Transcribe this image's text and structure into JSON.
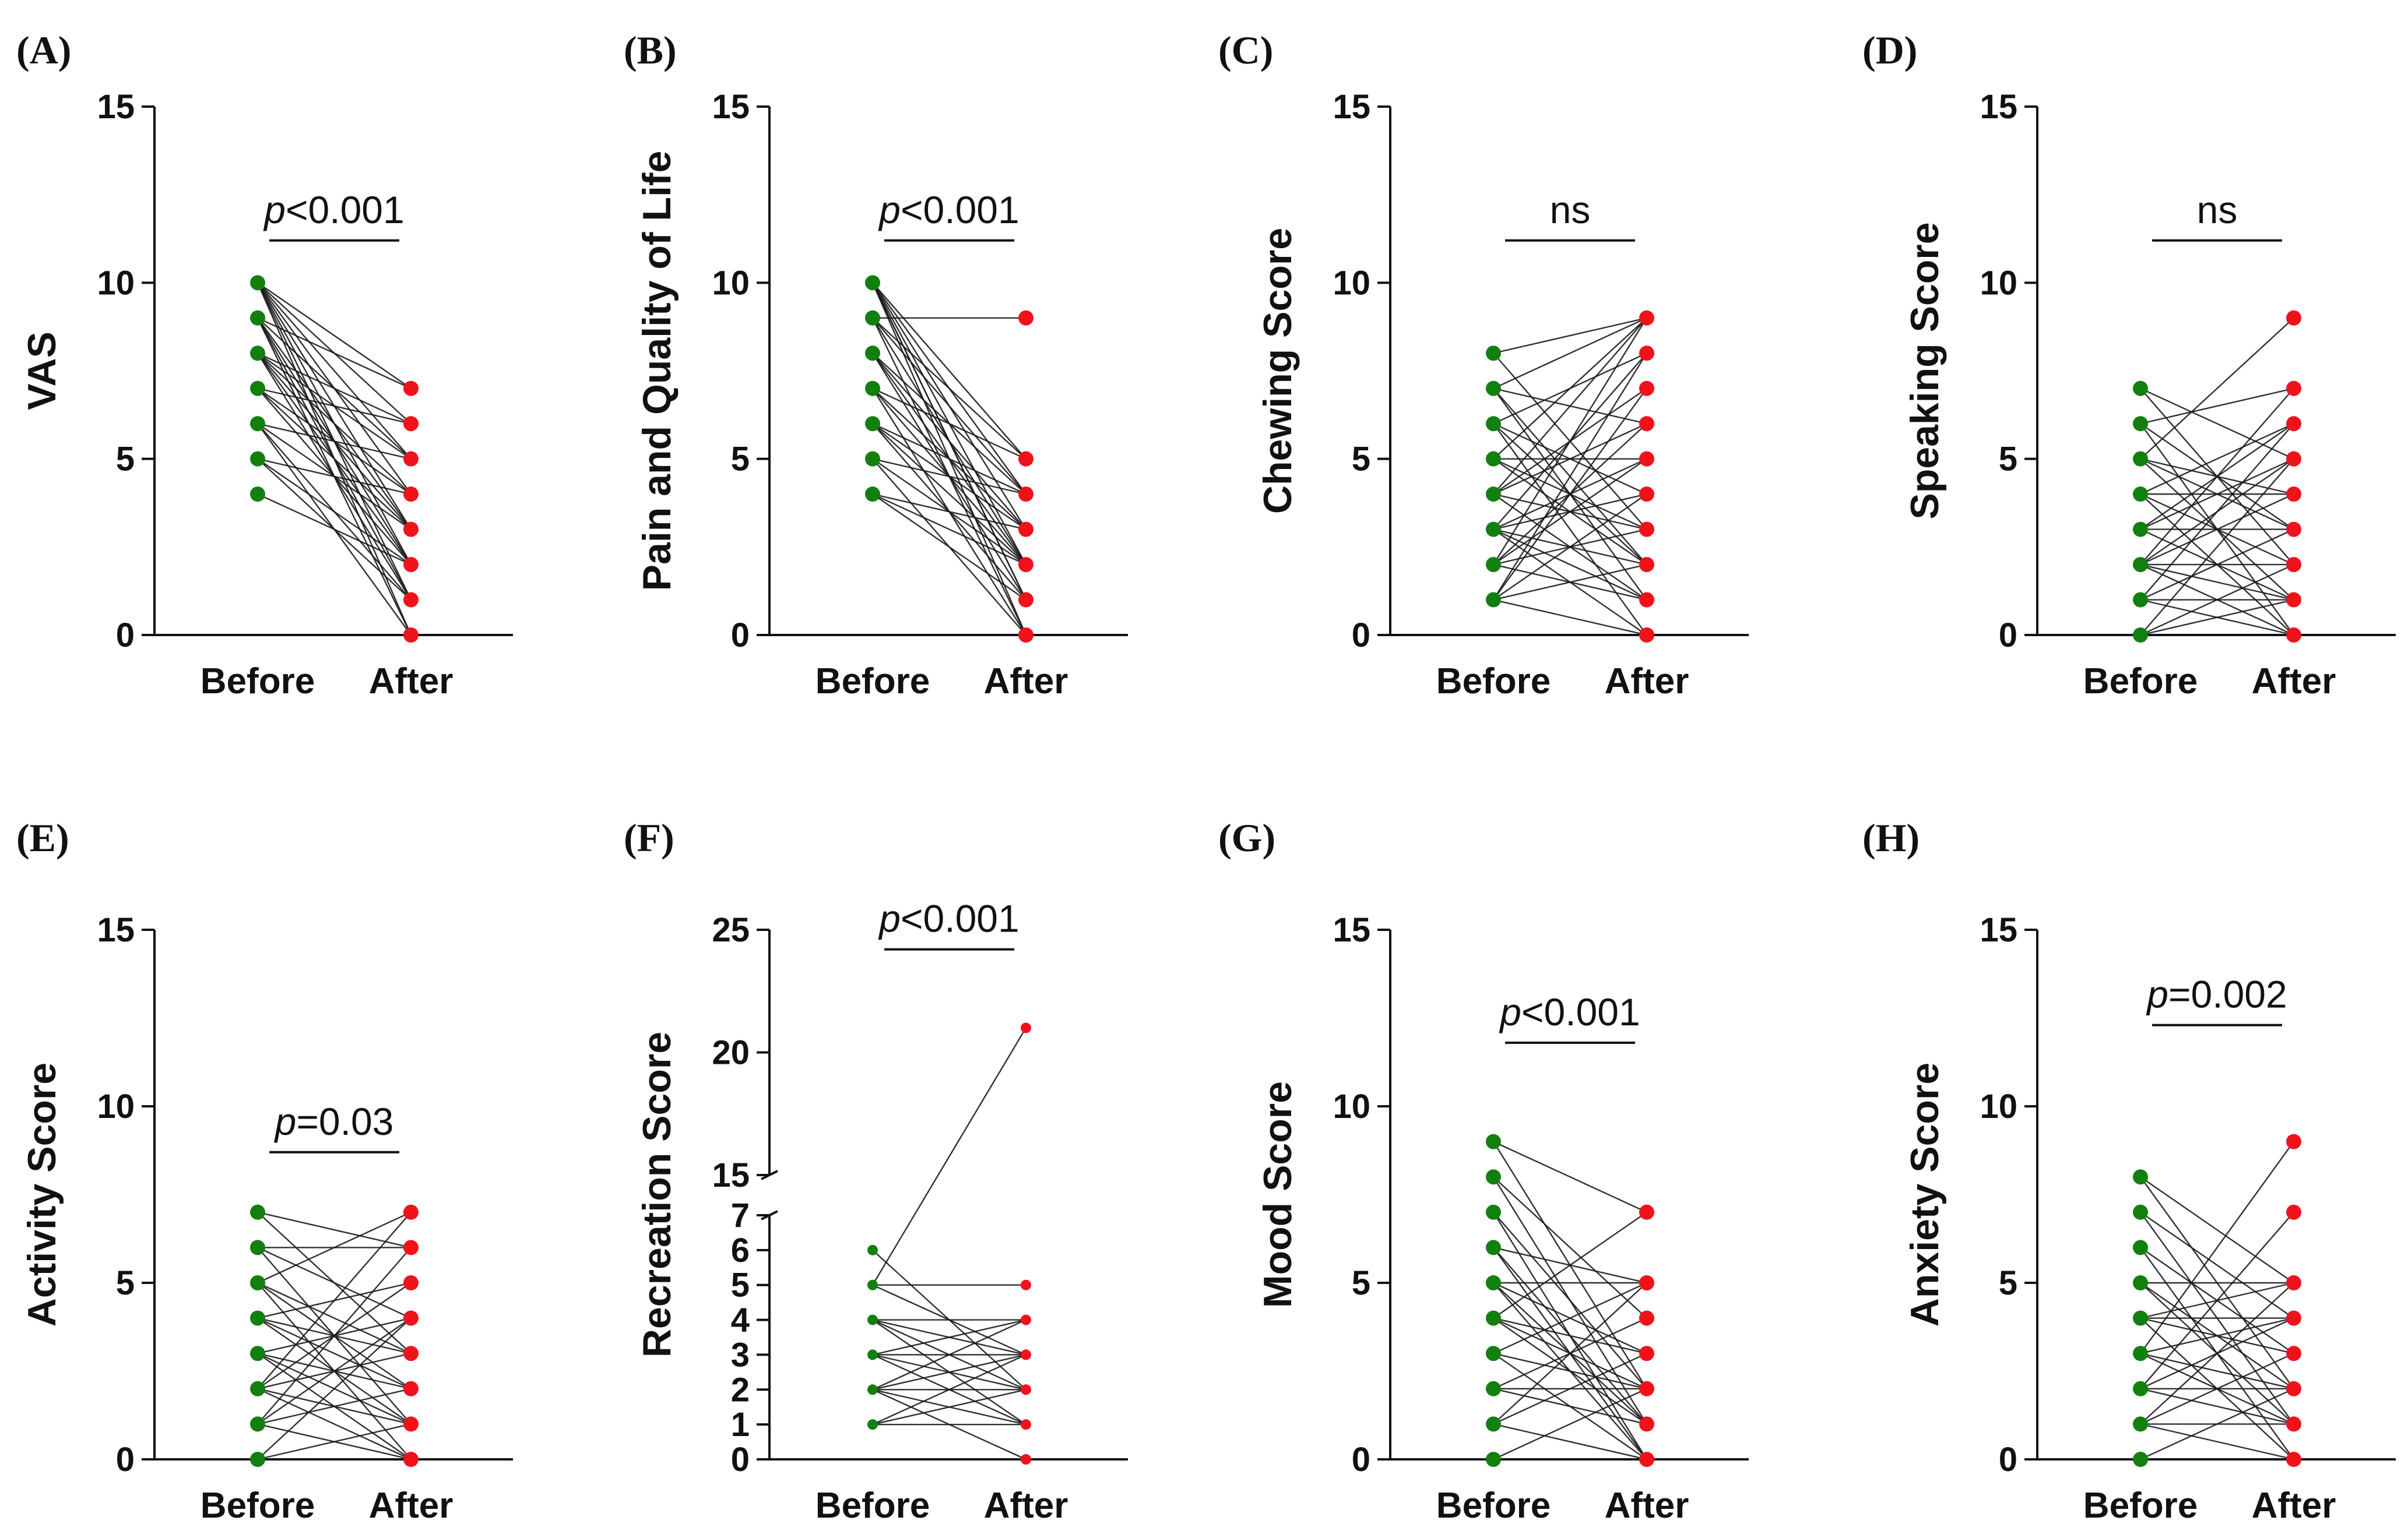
{
  "figure": {
    "colors": {
      "before": "#12800f",
      "after": "#f0121b",
      "axis": "#111111",
      "line": "#1a1a1a"
    }
  },
  "chart_data": [
    {
      "panel": "(A)",
      "type": "line",
      "title": "",
      "xlabel": "",
      "ylabel": "VAS",
      "categories": [
        "Before",
        "After"
      ],
      "ylim": [
        0,
        15
      ],
      "yticks": [
        0,
        5,
        10,
        15
      ],
      "significance": {
        "prefix": "p",
        "text": "<0.001"
      },
      "before_values": [
        4,
        5,
        6,
        7,
        8,
        9,
        10
      ],
      "after_values": [
        0,
        1,
        2,
        3,
        4,
        5,
        6,
        7
      ],
      "pairs": [
        [
          10,
          7
        ],
        [
          10,
          6
        ],
        [
          10,
          5
        ],
        [
          10,
          4
        ],
        [
          10,
          3
        ],
        [
          10,
          2
        ],
        [
          10,
          1
        ],
        [
          9,
          7
        ],
        [
          9,
          5
        ],
        [
          9,
          3
        ],
        [
          9,
          1
        ],
        [
          9,
          0
        ],
        [
          8,
          6
        ],
        [
          8,
          4
        ],
        [
          8,
          2
        ],
        [
          8,
          5
        ],
        [
          8,
          1
        ],
        [
          7,
          6
        ],
        [
          7,
          3
        ],
        [
          7,
          2
        ],
        [
          7,
          4
        ],
        [
          6,
          5
        ],
        [
          6,
          3
        ],
        [
          6,
          1
        ],
        [
          6,
          0
        ],
        [
          5,
          4
        ],
        [
          5,
          2
        ],
        [
          5,
          1
        ],
        [
          4,
          2
        ],
        [
          10,
          0
        ],
        [
          9,
          2
        ],
        [
          8,
          3
        ]
      ]
    },
    {
      "panel": "(B)",
      "type": "line",
      "title": "",
      "xlabel": "",
      "ylabel": "Pain and Quality of Life",
      "categories": [
        "Before",
        "After"
      ],
      "ylim": [
        0,
        15
      ],
      "yticks": [
        0,
        5,
        10,
        15
      ],
      "significance": {
        "prefix": "p",
        "text": "<0.001"
      },
      "before_values": [
        4,
        5,
        6,
        7,
        8,
        9,
        10
      ],
      "after_values": [
        0,
        1,
        2,
        3,
        4,
        5,
        9
      ],
      "pairs": [
        [
          9,
          9
        ],
        [
          10,
          5
        ],
        [
          10,
          4
        ],
        [
          10,
          3
        ],
        [
          10,
          2
        ],
        [
          10,
          1
        ],
        [
          10,
          0
        ],
        [
          9,
          5
        ],
        [
          9,
          4
        ],
        [
          9,
          2
        ],
        [
          9,
          0
        ],
        [
          8,
          4
        ],
        [
          8,
          3
        ],
        [
          8,
          1
        ],
        [
          8,
          2
        ],
        [
          7,
          5
        ],
        [
          7,
          3
        ],
        [
          7,
          2
        ],
        [
          7,
          0
        ],
        [
          6,
          4
        ],
        [
          6,
          3
        ],
        [
          6,
          1
        ],
        [
          6,
          2
        ],
        [
          5,
          4
        ],
        [
          5,
          2
        ],
        [
          5,
          0
        ],
        [
          4,
          2
        ],
        [
          4,
          1
        ],
        [
          4,
          3
        ],
        [
          10,
          1
        ]
      ]
    },
    {
      "panel": "(C)",
      "type": "line",
      "title": "",
      "xlabel": "",
      "ylabel": "Chewing Score",
      "categories": [
        "Before",
        "After"
      ],
      "ylim": [
        0,
        15
      ],
      "yticks": [
        0,
        5,
        10,
        15
      ],
      "significance": {
        "prefix": "",
        "text": "ns"
      },
      "before_values": [
        1,
        2,
        3,
        4,
        5,
        6,
        7,
        8
      ],
      "after_values": [
        0,
        1,
        2,
        3,
        4,
        5,
        6,
        7,
        8,
        9
      ],
      "pairs": [
        [
          8,
          9
        ],
        [
          8,
          3
        ],
        [
          7,
          9
        ],
        [
          7,
          6
        ],
        [
          7,
          2
        ],
        [
          7,
          1
        ],
        [
          6,
          8
        ],
        [
          6,
          4
        ],
        [
          6,
          0
        ],
        [
          5,
          9
        ],
        [
          5,
          5
        ],
        [
          5,
          2
        ],
        [
          4,
          7
        ],
        [
          4,
          3
        ],
        [
          4,
          1
        ],
        [
          4,
          6
        ],
        [
          3,
          8
        ],
        [
          3,
          5
        ],
        [
          3,
          2
        ],
        [
          3,
          0
        ],
        [
          3,
          4
        ],
        [
          2,
          9
        ],
        [
          2,
          6
        ],
        [
          2,
          3
        ],
        [
          2,
          1
        ],
        [
          1,
          7
        ],
        [
          1,
          4
        ],
        [
          1,
          2
        ],
        [
          1,
          0
        ],
        [
          2,
          5
        ],
        [
          3,
          1
        ],
        [
          4,
          9
        ],
        [
          5,
          3
        ],
        [
          6,
          2
        ],
        [
          1,
          8
        ]
      ]
    },
    {
      "panel": "(D)",
      "type": "line",
      "title": "",
      "xlabel": "",
      "ylabel": "Speaking Score",
      "categories": [
        "Before",
        "After"
      ],
      "ylim": [
        0,
        15
      ],
      "yticks": [
        0,
        5,
        10,
        15
      ],
      "significance": {
        "prefix": "",
        "text": "ns"
      },
      "before_values": [
        0,
        1,
        2,
        3,
        4,
        5,
        6,
        7
      ],
      "after_values": [
        0,
        1,
        2,
        3,
        4,
        5,
        6,
        7,
        9
      ],
      "pairs": [
        [
          7,
          5
        ],
        [
          7,
          2
        ],
        [
          6,
          7
        ],
        [
          6,
          3
        ],
        [
          6,
          0
        ],
        [
          5,
          9
        ],
        [
          5,
          4
        ],
        [
          5,
          1
        ],
        [
          4,
          6
        ],
        [
          4,
          2
        ],
        [
          4,
          0
        ],
        [
          3,
          5
        ],
        [
          3,
          3
        ],
        [
          3,
          1
        ],
        [
          2,
          7
        ],
        [
          2,
          4
        ],
        [
          2,
          2
        ],
        [
          2,
          0
        ],
        [
          1,
          6
        ],
        [
          1,
          3
        ],
        [
          1,
          1
        ],
        [
          0,
          5
        ],
        [
          0,
          2
        ],
        [
          1,
          0
        ],
        [
          2,
          1
        ],
        [
          3,
          6
        ],
        [
          4,
          4
        ],
        [
          5,
          3
        ],
        [
          0,
          1
        ],
        [
          2,
          5
        ]
      ]
    },
    {
      "panel": "(E)",
      "type": "line",
      "title": "",
      "xlabel": "",
      "ylabel": "Activity Score",
      "categories": [
        "Before",
        "After"
      ],
      "ylim": [
        0,
        15
      ],
      "yticks": [
        0,
        5,
        10,
        15
      ],
      "significance": {
        "prefix": "p",
        "text": "=0.03"
      },
      "before_values": [
        0,
        1,
        2,
        3,
        4,
        5,
        6,
        7
      ],
      "after_values": [
        0,
        1,
        2,
        3,
        4,
        5,
        6,
        7
      ],
      "pairs": [
        [
          7,
          6
        ],
        [
          7,
          3
        ],
        [
          6,
          6
        ],
        [
          6,
          4
        ],
        [
          6,
          1
        ],
        [
          5,
          7
        ],
        [
          5,
          3
        ],
        [
          5,
          0
        ],
        [
          4,
          5
        ],
        [
          4,
          2
        ],
        [
          4,
          1
        ],
        [
          3,
          4
        ],
        [
          3,
          2
        ],
        [
          3,
          0
        ],
        [
          2,
          5
        ],
        [
          2,
          3
        ],
        [
          2,
          1
        ],
        [
          1,
          6
        ],
        [
          1,
          2
        ],
        [
          1,
          0
        ],
        [
          0,
          4
        ],
        [
          0,
          1
        ],
        [
          2,
          7
        ],
        [
          3,
          1
        ],
        [
          4,
          3
        ],
        [
          5,
          2
        ],
        [
          1,
          4
        ],
        [
          2,
          0
        ]
      ]
    },
    {
      "panel": "(F)",
      "type": "line",
      "title": "",
      "xlabel": "",
      "ylabel": "Recreation Score",
      "categories": [
        "Before",
        "After"
      ],
      "ylim": [
        0,
        25
      ],
      "axis_break": [
        7,
        15
      ],
      "yticks_lower": [
        0,
        1,
        2,
        3,
        4,
        5,
        6,
        7
      ],
      "yticks_upper": [
        15,
        20,
        25
      ],
      "significance": {
        "prefix": "p",
        "text": "<0.001"
      },
      "before_values": [
        1,
        2,
        3,
        4,
        5,
        6
      ],
      "after_values": [
        0,
        1,
        2,
        3,
        4,
        5,
        21
      ],
      "pairs": [
        [
          5,
          21
        ],
        [
          5,
          5
        ],
        [
          6,
          2
        ],
        [
          5,
          3
        ],
        [
          4,
          4
        ],
        [
          4,
          2
        ],
        [
          4,
          1
        ],
        [
          3,
          4
        ],
        [
          3,
          3
        ],
        [
          3,
          1
        ],
        [
          2,
          4
        ],
        [
          2,
          2
        ],
        [
          2,
          1
        ],
        [
          2,
          0
        ],
        [
          1,
          3
        ],
        [
          1,
          1
        ],
        [
          1,
          2
        ],
        [
          3,
          2
        ],
        [
          4,
          3
        ],
        [
          2,
          3
        ]
      ]
    },
    {
      "panel": "(G)",
      "type": "line",
      "title": "",
      "xlabel": "",
      "ylabel": "Mood Score",
      "categories": [
        "Before",
        "After"
      ],
      "ylim": [
        0,
        15
      ],
      "yticks": [
        0,
        5,
        10,
        15
      ],
      "significance": {
        "prefix": "p",
        "text": "<0.001"
      },
      "before_values": [
        0,
        1,
        2,
        3,
        4,
        5,
        6,
        7,
        8,
        9
      ],
      "after_values": [
        0,
        1,
        2,
        3,
        4,
        5,
        7
      ],
      "pairs": [
        [
          9,
          7
        ],
        [
          9,
          2
        ],
        [
          8,
          1
        ],
        [
          8,
          4
        ],
        [
          7,
          0
        ],
        [
          7,
          2
        ],
        [
          6,
          1
        ],
        [
          6,
          5
        ],
        [
          5,
          5
        ],
        [
          5,
          3
        ],
        [
          5,
          1
        ],
        [
          5,
          0
        ],
        [
          4,
          2
        ],
        [
          4,
          7
        ],
        [
          4,
          1
        ],
        [
          3,
          5
        ],
        [
          3,
          0
        ],
        [
          2,
          4
        ],
        [
          2,
          2
        ],
        [
          2,
          1
        ],
        [
          1,
          5
        ],
        [
          1,
          3
        ],
        [
          1,
          0
        ],
        [
          0,
          2
        ],
        [
          3,
          2
        ],
        [
          6,
          0
        ],
        [
          4,
          3
        ]
      ]
    },
    {
      "panel": "(H)",
      "type": "line",
      "title": "",
      "xlabel": "",
      "ylabel": "Anxiety Score",
      "categories": [
        "Before",
        "After"
      ],
      "ylim": [
        0,
        15
      ],
      "yticks": [
        0,
        5,
        10,
        15
      ],
      "significance": {
        "prefix": "p",
        "text": "=0.002"
      },
      "before_values": [
        0,
        1,
        2,
        3,
        4,
        5,
        6,
        7,
        8
      ],
      "after_values": [
        0,
        1,
        2,
        3,
        4,
        5,
        7,
        9
      ],
      "pairs": [
        [
          8,
          5
        ],
        [
          8,
          2
        ],
        [
          7,
          4
        ],
        [
          7,
          1
        ],
        [
          6,
          3
        ],
        [
          6,
          0
        ],
        [
          5,
          5
        ],
        [
          5,
          2
        ],
        [
          5,
          1
        ],
        [
          4,
          4
        ],
        [
          4,
          3
        ],
        [
          4,
          0
        ],
        [
          3,
          9
        ],
        [
          3,
          2
        ],
        [
          3,
          1
        ],
        [
          2,
          7
        ],
        [
          2,
          4
        ],
        [
          2,
          2
        ],
        [
          1,
          5
        ],
        [
          1,
          3
        ],
        [
          1,
          1
        ],
        [
          0,
          2
        ],
        [
          2,
          1
        ],
        [
          3,
          4
        ],
        [
          4,
          5
        ],
        [
          1,
          0
        ]
      ]
    }
  ]
}
